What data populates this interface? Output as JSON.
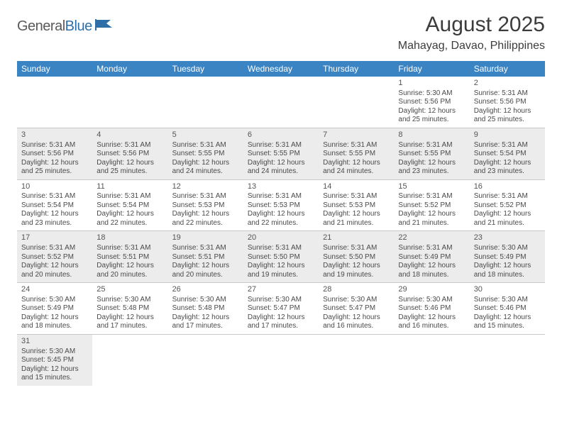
{
  "logo": {
    "general": "General",
    "blue": "Blue"
  },
  "title": "August 2025",
  "location": "Mahayag, Davao, Philippines",
  "colors": {
    "header_bg": "#3b84c4",
    "header_text": "#ffffff",
    "row_alt_bg": "#ececec",
    "text": "#4a4a4a",
    "logo_blue": "#2f6fa8"
  },
  "days_of_week": [
    "Sunday",
    "Monday",
    "Tuesday",
    "Wednesday",
    "Thursday",
    "Friday",
    "Saturday"
  ],
  "weeks": [
    [
      null,
      null,
      null,
      null,
      null,
      {
        "n": "1",
        "sr": "Sunrise: 5:30 AM",
        "ss": "Sunset: 5:56 PM",
        "d1": "Daylight: 12 hours",
        "d2": "and 25 minutes."
      },
      {
        "n": "2",
        "sr": "Sunrise: 5:31 AM",
        "ss": "Sunset: 5:56 PM",
        "d1": "Daylight: 12 hours",
        "d2": "and 25 minutes."
      }
    ],
    [
      {
        "n": "3",
        "sr": "Sunrise: 5:31 AM",
        "ss": "Sunset: 5:56 PM",
        "d1": "Daylight: 12 hours",
        "d2": "and 25 minutes."
      },
      {
        "n": "4",
        "sr": "Sunrise: 5:31 AM",
        "ss": "Sunset: 5:56 PM",
        "d1": "Daylight: 12 hours",
        "d2": "and 25 minutes."
      },
      {
        "n": "5",
        "sr": "Sunrise: 5:31 AM",
        "ss": "Sunset: 5:55 PM",
        "d1": "Daylight: 12 hours",
        "d2": "and 24 minutes."
      },
      {
        "n": "6",
        "sr": "Sunrise: 5:31 AM",
        "ss": "Sunset: 5:55 PM",
        "d1": "Daylight: 12 hours",
        "d2": "and 24 minutes."
      },
      {
        "n": "7",
        "sr": "Sunrise: 5:31 AM",
        "ss": "Sunset: 5:55 PM",
        "d1": "Daylight: 12 hours",
        "d2": "and 24 minutes."
      },
      {
        "n": "8",
        "sr": "Sunrise: 5:31 AM",
        "ss": "Sunset: 5:55 PM",
        "d1": "Daylight: 12 hours",
        "d2": "and 23 minutes."
      },
      {
        "n": "9",
        "sr": "Sunrise: 5:31 AM",
        "ss": "Sunset: 5:54 PM",
        "d1": "Daylight: 12 hours",
        "d2": "and 23 minutes."
      }
    ],
    [
      {
        "n": "10",
        "sr": "Sunrise: 5:31 AM",
        "ss": "Sunset: 5:54 PM",
        "d1": "Daylight: 12 hours",
        "d2": "and 23 minutes."
      },
      {
        "n": "11",
        "sr": "Sunrise: 5:31 AM",
        "ss": "Sunset: 5:54 PM",
        "d1": "Daylight: 12 hours",
        "d2": "and 22 minutes."
      },
      {
        "n": "12",
        "sr": "Sunrise: 5:31 AM",
        "ss": "Sunset: 5:53 PM",
        "d1": "Daylight: 12 hours",
        "d2": "and 22 minutes."
      },
      {
        "n": "13",
        "sr": "Sunrise: 5:31 AM",
        "ss": "Sunset: 5:53 PM",
        "d1": "Daylight: 12 hours",
        "d2": "and 22 minutes."
      },
      {
        "n": "14",
        "sr": "Sunrise: 5:31 AM",
        "ss": "Sunset: 5:53 PM",
        "d1": "Daylight: 12 hours",
        "d2": "and 21 minutes."
      },
      {
        "n": "15",
        "sr": "Sunrise: 5:31 AM",
        "ss": "Sunset: 5:52 PM",
        "d1": "Daylight: 12 hours",
        "d2": "and 21 minutes."
      },
      {
        "n": "16",
        "sr": "Sunrise: 5:31 AM",
        "ss": "Sunset: 5:52 PM",
        "d1": "Daylight: 12 hours",
        "d2": "and 21 minutes."
      }
    ],
    [
      {
        "n": "17",
        "sr": "Sunrise: 5:31 AM",
        "ss": "Sunset: 5:52 PM",
        "d1": "Daylight: 12 hours",
        "d2": "and 20 minutes."
      },
      {
        "n": "18",
        "sr": "Sunrise: 5:31 AM",
        "ss": "Sunset: 5:51 PM",
        "d1": "Daylight: 12 hours",
        "d2": "and 20 minutes."
      },
      {
        "n": "19",
        "sr": "Sunrise: 5:31 AM",
        "ss": "Sunset: 5:51 PM",
        "d1": "Daylight: 12 hours",
        "d2": "and 20 minutes."
      },
      {
        "n": "20",
        "sr": "Sunrise: 5:31 AM",
        "ss": "Sunset: 5:50 PM",
        "d1": "Daylight: 12 hours",
        "d2": "and 19 minutes."
      },
      {
        "n": "21",
        "sr": "Sunrise: 5:31 AM",
        "ss": "Sunset: 5:50 PM",
        "d1": "Daylight: 12 hours",
        "d2": "and 19 minutes."
      },
      {
        "n": "22",
        "sr": "Sunrise: 5:31 AM",
        "ss": "Sunset: 5:49 PM",
        "d1": "Daylight: 12 hours",
        "d2": "and 18 minutes."
      },
      {
        "n": "23",
        "sr": "Sunrise: 5:30 AM",
        "ss": "Sunset: 5:49 PM",
        "d1": "Daylight: 12 hours",
        "d2": "and 18 minutes."
      }
    ],
    [
      {
        "n": "24",
        "sr": "Sunrise: 5:30 AM",
        "ss": "Sunset: 5:49 PM",
        "d1": "Daylight: 12 hours",
        "d2": "and 18 minutes."
      },
      {
        "n": "25",
        "sr": "Sunrise: 5:30 AM",
        "ss": "Sunset: 5:48 PM",
        "d1": "Daylight: 12 hours",
        "d2": "and 17 minutes."
      },
      {
        "n": "26",
        "sr": "Sunrise: 5:30 AM",
        "ss": "Sunset: 5:48 PM",
        "d1": "Daylight: 12 hours",
        "d2": "and 17 minutes."
      },
      {
        "n": "27",
        "sr": "Sunrise: 5:30 AM",
        "ss": "Sunset: 5:47 PM",
        "d1": "Daylight: 12 hours",
        "d2": "and 17 minutes."
      },
      {
        "n": "28",
        "sr": "Sunrise: 5:30 AM",
        "ss": "Sunset: 5:47 PM",
        "d1": "Daylight: 12 hours",
        "d2": "and 16 minutes."
      },
      {
        "n": "29",
        "sr": "Sunrise: 5:30 AM",
        "ss": "Sunset: 5:46 PM",
        "d1": "Daylight: 12 hours",
        "d2": "and 16 minutes."
      },
      {
        "n": "30",
        "sr": "Sunrise: 5:30 AM",
        "ss": "Sunset: 5:46 PM",
        "d1": "Daylight: 12 hours",
        "d2": "and 15 minutes."
      }
    ],
    [
      {
        "n": "31",
        "sr": "Sunrise: 5:30 AM",
        "ss": "Sunset: 5:45 PM",
        "d1": "Daylight: 12 hours",
        "d2": "and 15 minutes."
      },
      null,
      null,
      null,
      null,
      null,
      null
    ]
  ]
}
